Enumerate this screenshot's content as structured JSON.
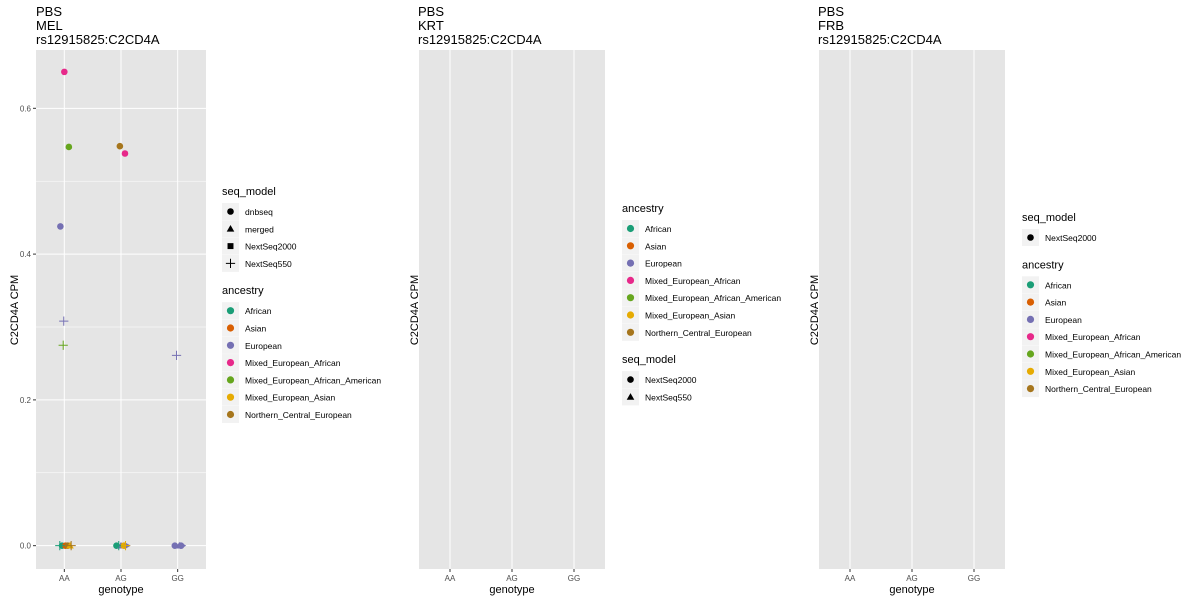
{
  "panel_bg": "#e5e5e5",
  "grid_color": "#ffffff",
  "palette": {
    "African": "#1b9e77",
    "Asian": "#d95f02",
    "European": "#7570b3",
    "Mixed_European_African": "#e7298a",
    "Mixed_European_African_American": "#66a61e",
    "Mixed_European_Asian": "#e6ab02",
    "Northern_Central_European": "#a6761d"
  },
  "chart_data": [
    {
      "type": "scatter",
      "title_lines": [
        "PBS",
        "MEL",
        "rs12915825:C2CD4A"
      ],
      "xlabel": "genotype",
      "ylabel": "C2CD4A CPM",
      "categories": [
        "AA",
        "AG",
        "GG"
      ],
      "ylim": [
        -0.032,
        0.68
      ],
      "yticks": [
        0.0,
        0.2,
        0.4,
        0.6
      ],
      "ytick_labels": [
        "0.0",
        "0.2",
        "0.4",
        "0.6"
      ],
      "grid": true,
      "legends": [
        {
          "title": "seq_model",
          "kind": "shape",
          "items": [
            {
              "label": "dnbseq",
              "shape": "circle"
            },
            {
              "label": "merged",
              "shape": "triangle"
            },
            {
              "label": "NextSeq2000",
              "shape": "square"
            },
            {
              "label": "NextSeq550",
              "shape": "plus"
            }
          ]
        },
        {
          "title": "ancestry",
          "kind": "color",
          "items": [
            {
              "label": "African"
            },
            {
              "label": "Asian"
            },
            {
              "label": "European"
            },
            {
              "label": "Mixed_European_African"
            },
            {
              "label": "Mixed_European_African_American"
            },
            {
              "label": "Mixed_European_Asian"
            },
            {
              "label": "Northern_Central_European"
            }
          ]
        }
      ],
      "points": [
        {
          "genotype": "AA",
          "jitter": 0.0,
          "y": 0.65,
          "ancestry": "Mixed_European_African",
          "seq_model": "dnbseq"
        },
        {
          "genotype": "AA",
          "jitter": 0.08,
          "y": 0.547,
          "ancestry": "Mixed_European_African_American",
          "seq_model": "dnbseq"
        },
        {
          "genotype": "AA",
          "jitter": -0.07,
          "y": 0.438,
          "ancestry": "European",
          "seq_model": "dnbseq"
        },
        {
          "genotype": "AA",
          "jitter": -0.01,
          "y": 0.308,
          "ancestry": "European",
          "seq_model": "NextSeq550"
        },
        {
          "genotype": "AA",
          "jitter": -0.02,
          "y": 0.275,
          "ancestry": "Mixed_European_African_American",
          "seq_model": "NextSeq550"
        },
        {
          "genotype": "AA",
          "jitter": -0.04,
          "y": 0.0,
          "ancestry": "African",
          "seq_model": "dnbseq"
        },
        {
          "genotype": "AA",
          "jitter": 0.02,
          "y": 0.0,
          "ancestry": "Asian",
          "seq_model": "dnbseq"
        },
        {
          "genotype": "AA",
          "jitter": 0.06,
          "y": 0.0,
          "ancestry": "Northern_Central_European",
          "seq_model": "dnbseq"
        },
        {
          "genotype": "AA",
          "jitter": 0.1,
          "y": 0.0,
          "ancestry": "Mixed_European_Asian",
          "seq_model": "merged"
        },
        {
          "genotype": "AA",
          "jitter": -0.08,
          "y": 0.0,
          "ancestry": "African",
          "seq_model": "NextSeq550"
        },
        {
          "genotype": "AA",
          "jitter": 0.12,
          "y": 0.0,
          "ancestry": "Northern_Central_European",
          "seq_model": "NextSeq550"
        },
        {
          "genotype": "AG",
          "jitter": -0.02,
          "y": 0.548,
          "ancestry": "Northern_Central_European",
          "seq_model": "dnbseq"
        },
        {
          "genotype": "AG",
          "jitter": 0.07,
          "y": 0.538,
          "ancestry": "Mixed_European_African",
          "seq_model": "dnbseq"
        },
        {
          "genotype": "AG",
          "jitter": -0.08,
          "y": 0.0,
          "ancestry": "African",
          "seq_model": "dnbseq"
        },
        {
          "genotype": "AG",
          "jitter": 0.0,
          "y": 0.0,
          "ancestry": "European",
          "seq_model": "merged"
        },
        {
          "genotype": "AG",
          "jitter": 0.05,
          "y": 0.0,
          "ancestry": "Mixed_European_Asian",
          "seq_model": "dnbseq"
        },
        {
          "genotype": "AG",
          "jitter": 0.11,
          "y": 0.0,
          "ancestry": "European",
          "seq_model": "triangle_right"
        },
        {
          "genotype": "AG",
          "jitter": -0.04,
          "y": 0.0,
          "ancestry": "African",
          "seq_model": "NextSeq550"
        },
        {
          "genotype": "AG",
          "jitter": 0.08,
          "y": 0.0,
          "ancestry": "Mixed_European_Asian",
          "seq_model": "NextSeq550"
        },
        {
          "genotype": "GG",
          "jitter": -0.02,
          "y": 0.261,
          "ancestry": "European",
          "seq_model": "NextSeq550"
        },
        {
          "genotype": "GG",
          "jitter": -0.05,
          "y": 0.0,
          "ancestry": "European",
          "seq_model": "dnbseq"
        },
        {
          "genotype": "GG",
          "jitter": 0.03,
          "y": 0.0,
          "ancestry": "European",
          "seq_model": "merged"
        },
        {
          "genotype": "GG",
          "jitter": 0.09,
          "y": 0.0,
          "ancestry": "European",
          "seq_model": "triangle_right"
        },
        {
          "genotype": "GG",
          "jitter": 0.06,
          "y": 0.0,
          "ancestry": "European",
          "seq_model": "dnbseq"
        }
      ]
    },
    {
      "type": "scatter",
      "title_lines": [
        "PBS",
        "KRT",
        "rs12915825:C2CD4A"
      ],
      "xlabel": "genotype",
      "ylabel": "C2CD4A CPM",
      "categories": [
        "AA",
        "AG",
        "GG"
      ],
      "yticks": [],
      "ytick_labels": [],
      "grid": true,
      "legends": [
        {
          "title": "ancestry",
          "kind": "color",
          "items": [
            {
              "label": "African"
            },
            {
              "label": "Asian"
            },
            {
              "label": "European"
            },
            {
              "label": "Mixed_European_African"
            },
            {
              "label": "Mixed_European_African_American"
            },
            {
              "label": "Mixed_European_Asian"
            },
            {
              "label": "Northern_Central_European"
            }
          ]
        },
        {
          "title": "seq_model",
          "kind": "shape",
          "items": [
            {
              "label": "NextSeq2000",
              "shape": "circle"
            },
            {
              "label": "NextSeq550",
              "shape": "triangle"
            }
          ]
        }
      ],
      "points": []
    },
    {
      "type": "scatter",
      "title_lines": [
        "PBS",
        "FRB",
        "rs12915825:C2CD4A"
      ],
      "xlabel": "genotype",
      "ylabel": "C2CD4A CPM",
      "categories": [
        "AA",
        "AG",
        "GG"
      ],
      "yticks": [],
      "ytick_labels": [],
      "grid": true,
      "legends": [
        {
          "title": "seq_model",
          "kind": "shape",
          "items": [
            {
              "label": "NextSeq2000",
              "shape": "circle"
            }
          ]
        },
        {
          "title": "ancestry",
          "kind": "color",
          "items": [
            {
              "label": "African"
            },
            {
              "label": "Asian"
            },
            {
              "label": "European"
            },
            {
              "label": "Mixed_European_African"
            },
            {
              "label": "Mixed_European_African_American"
            },
            {
              "label": "Mixed_European_Asian"
            },
            {
              "label": "Northern_Central_European"
            }
          ]
        }
      ],
      "points": []
    }
  ]
}
